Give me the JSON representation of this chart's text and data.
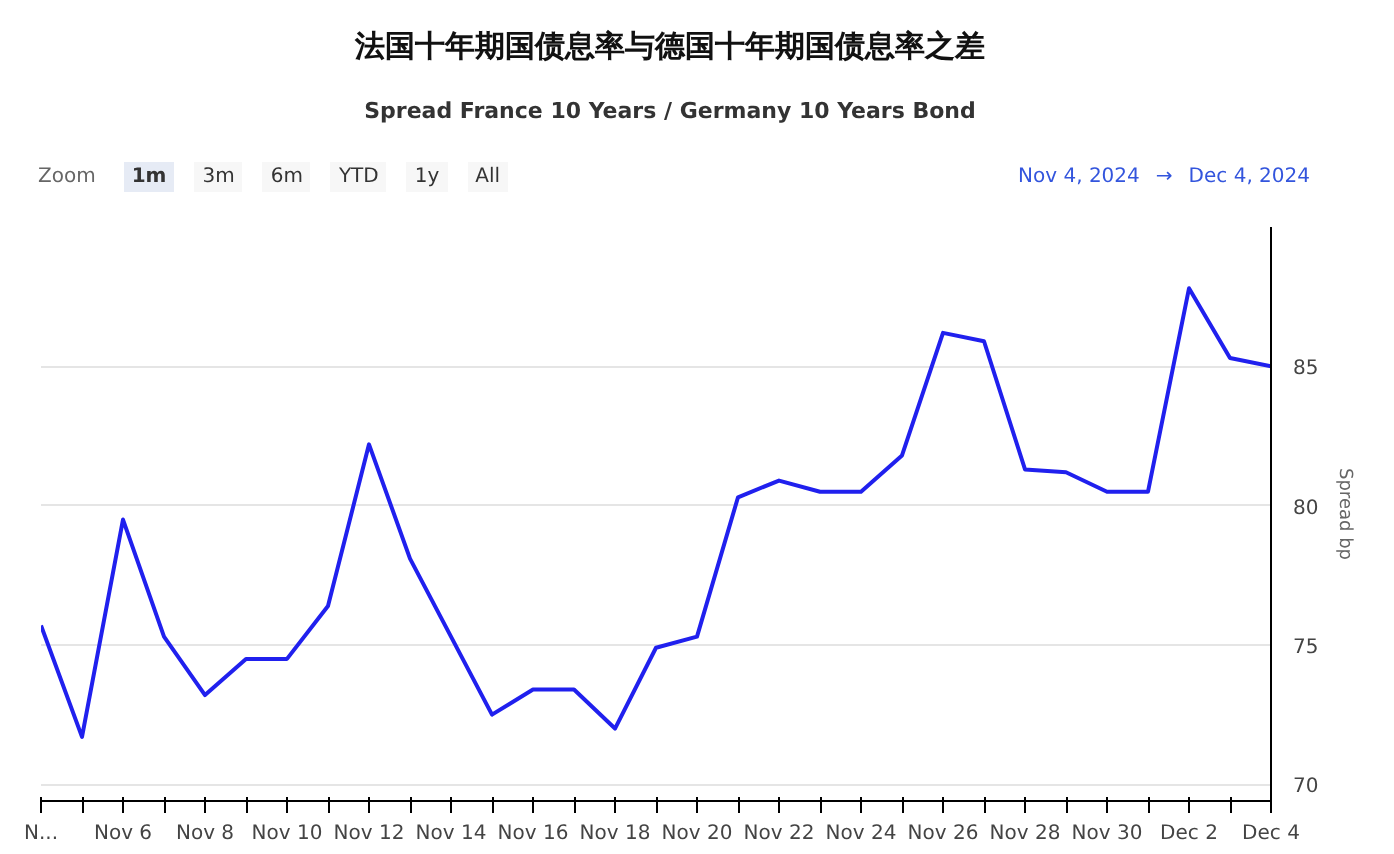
{
  "chart_data": {
    "type": "line",
    "title": "法国十年期国债息率与德国十年期国债息率之差",
    "subtitle": "Spread France 10 Years / Germany 10 Years Bond",
    "ylabel": "Spread bp",
    "annotations": [
      "Zoom",
      "1m",
      "3m",
      "6m",
      "YTD",
      "1y",
      "All",
      "Nov 4, 2024",
      "→",
      "Dec 4, 2024"
    ],
    "categories": [
      "N...",
      null,
      "Nov 6",
      null,
      "Nov 8",
      null,
      "Nov 10",
      null,
      "Nov 12",
      null,
      "Nov 14",
      null,
      "Nov 16",
      null,
      "Nov 18",
      null,
      "Nov 20",
      null,
      "Nov 22",
      null,
      "Nov 24",
      null,
      "Nov 26",
      null,
      "Nov 28",
      null,
      "Nov 30",
      null,
      "Dec 2",
      null,
      "Dec 4"
    ],
    "series": [
      {
        "color": "#2020ee",
        "values": [
          75.7,
          71.7,
          79.5,
          75.3,
          73.2,
          74.5,
          74.5,
          76.4,
          82.2,
          78.1,
          75.3,
          72.5,
          73.4,
          73.4,
          72.0,
          74.9,
          75.3,
          80.3,
          80.9,
          80.5,
          80.5,
          81.8,
          86.2,
          85.9,
          81.3,
          81.2,
          80.5,
          80.5,
          87.8,
          85.3,
          85.0
        ]
      }
    ],
    "ylim": [
      69.4,
      90
    ],
    "yticks": [
      70,
      75,
      80,
      85
    ],
    "grid": "y",
    "marker": "none",
    "line_style": "solid"
  }
}
